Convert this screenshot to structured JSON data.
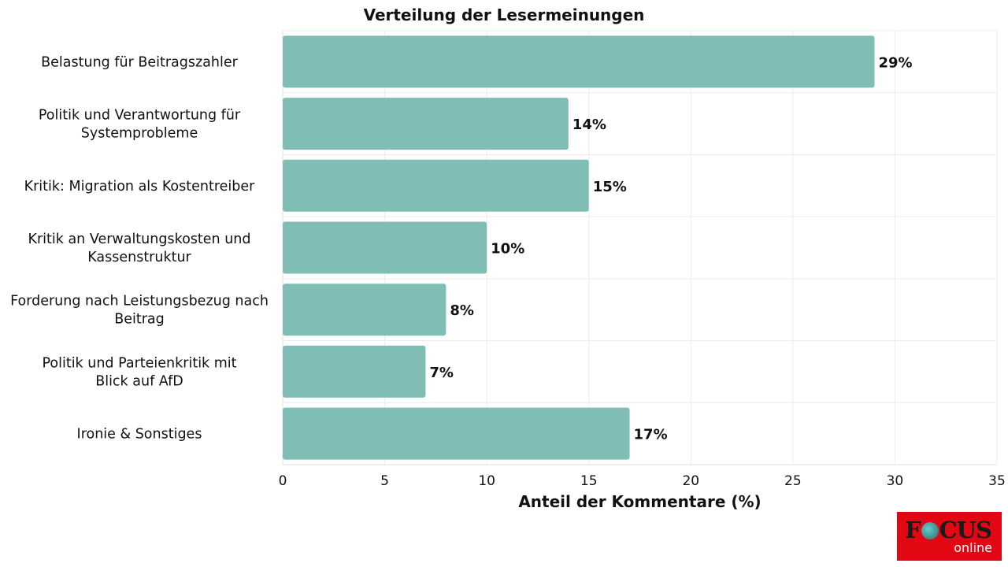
{
  "chart_data": {
    "type": "bar",
    "orientation": "horizontal",
    "title": "Verteilung der Lesermeinungen",
    "xlabel": "Anteil der Kommentare (%)",
    "ylabel": "",
    "xlim": [
      0,
      35
    ],
    "xticks": [
      0,
      5,
      10,
      15,
      20,
      25,
      30,
      35
    ],
    "grid": true,
    "categories": [
      [
        "Belastung für Beitragszahler"
      ],
      [
        "Politik und Verantwortung für",
        "Systemprobleme"
      ],
      [
        "Kritik: Migration als Kostentreiber"
      ],
      [
        "Kritik an Verwaltungskosten und",
        "Kassenstruktur"
      ],
      [
        "Forderung nach Leistungsbezug nach",
        "Beitrag"
      ],
      [
        "Politik und Parteienkritik mit",
        "Blick auf AfD"
      ],
      [
        "Ironie & Sonstiges"
      ]
    ],
    "values": [
      29,
      14,
      15,
      10,
      8,
      7,
      17
    ],
    "data_labels": [
      "29%",
      "14%",
      "15%",
      "10%",
      "8%",
      "7%",
      "17%"
    ],
    "bar_color": "#80bdb5"
  },
  "logo": {
    "brand": "FOCUS",
    "sub": "online"
  }
}
